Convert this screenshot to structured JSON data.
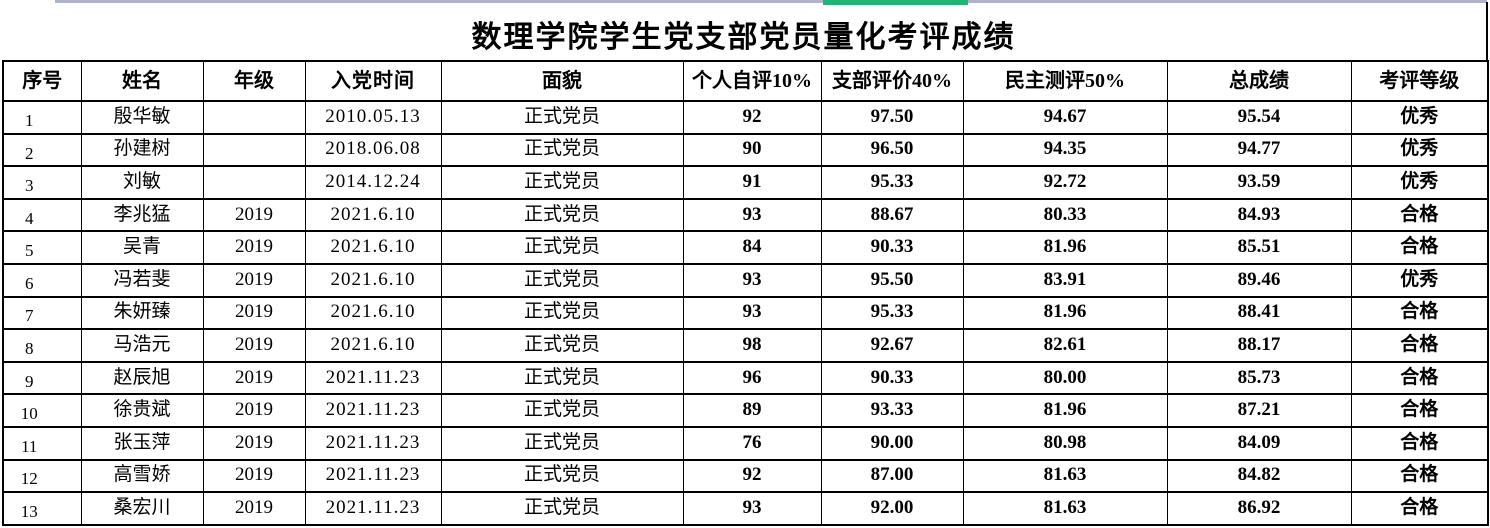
{
  "page": {
    "title": "数理学院学生党支部党员量化考评成绩"
  },
  "decorations": {
    "top_line_color": "#b0b4c9",
    "selection_bar_color": "#1fb573",
    "border_color": "#000000"
  },
  "table": {
    "columns": [
      {
        "key": "index",
        "label": "序号"
      },
      {
        "key": "name",
        "label": "姓名"
      },
      {
        "key": "grade",
        "label": "年级"
      },
      {
        "key": "join",
        "label": "入党时间"
      },
      {
        "key": "status",
        "label": "面貌"
      },
      {
        "key": "self",
        "label": "个人自评10%"
      },
      {
        "key": "branch",
        "label": "支部评价40%"
      },
      {
        "key": "demo",
        "label": "民主测评50%"
      },
      {
        "key": "total",
        "label": "总成绩"
      },
      {
        "key": "level",
        "label": "考评等级"
      }
    ],
    "rows": [
      {
        "index": "1",
        "name": "殷华敏",
        "grade": "",
        "join": "2010.05.13",
        "status": "正式党员",
        "self": "92",
        "branch": "97.50",
        "demo": "94.67",
        "total": "95.54",
        "level": "优秀"
      },
      {
        "index": "2",
        "name": "孙建树",
        "grade": "",
        "join": "2018.06.08",
        "status": "正式党员",
        "self": "90",
        "branch": "96.50",
        "demo": "94.35",
        "total": "94.77",
        "level": "优秀"
      },
      {
        "index": "3",
        "name": "刘敏",
        "grade": "",
        "join": "2014.12.24",
        "status": "正式党员",
        "self": "91",
        "branch": "95.33",
        "demo": "92.72",
        "total": "93.59",
        "level": "优秀"
      },
      {
        "index": "4",
        "name": "李兆猛",
        "grade": "2019",
        "join": "2021.6.10",
        "status": "正式党员",
        "self": "93",
        "branch": "88.67",
        "demo": "80.33",
        "total": "84.93",
        "level": "合格"
      },
      {
        "index": "5",
        "name": "吴青",
        "grade": "2019",
        "join": "2021.6.10",
        "status": "正式党员",
        "self": "84",
        "branch": "90.33",
        "demo": "81.96",
        "total": "85.51",
        "level": "合格"
      },
      {
        "index": "6",
        "name": "冯若斐",
        "grade": "2019",
        "join": "2021.6.10",
        "status": "正式党员",
        "self": "93",
        "branch": "95.50",
        "demo": "83.91",
        "total": "89.46",
        "level": "优秀"
      },
      {
        "index": "7",
        "name": "朱妍臻",
        "grade": "2019",
        "join": "2021.6.10",
        "status": "正式党员",
        "self": "93",
        "branch": "95.33",
        "demo": "81.96",
        "total": "88.41",
        "level": "合格"
      },
      {
        "index": "8",
        "name": "马浩元",
        "grade": "2019",
        "join": "2021.6.10",
        "status": "正式党员",
        "self": "98",
        "branch": "92.67",
        "demo": "82.61",
        "total": "88.17",
        "level": "合格"
      },
      {
        "index": "9",
        "name": "赵辰旭",
        "grade": "2019",
        "join": "2021.11.23",
        "status": "正式党员",
        "self": "96",
        "branch": "90.33",
        "demo": "80.00",
        "total": "85.73",
        "level": "合格"
      },
      {
        "index": "10",
        "name": "徐贵斌",
        "grade": "2019",
        "join": "2021.11.23",
        "status": "正式党员",
        "self": "89",
        "branch": "93.33",
        "demo": "81.96",
        "total": "87.21",
        "level": "合格"
      },
      {
        "index": "11",
        "name": "张玉萍",
        "grade": "2019",
        "join": "2021.11.23",
        "status": "正式党员",
        "self": "76",
        "branch": "90.00",
        "demo": "80.98",
        "total": "84.09",
        "level": "合格"
      },
      {
        "index": "12",
        "name": "高雪娇",
        "grade": "2019",
        "join": "2021.11.23",
        "status": "正式党员",
        "self": "92",
        "branch": "87.00",
        "demo": "81.63",
        "total": "84.82",
        "level": "合格"
      },
      {
        "index": "13",
        "name": "桑宏川",
        "grade": "2019",
        "join": "2021.11.23",
        "status": "正式党员",
        "self": "93",
        "branch": "92.00",
        "demo": "81.63",
        "total": "86.92",
        "level": "合格"
      }
    ]
  }
}
